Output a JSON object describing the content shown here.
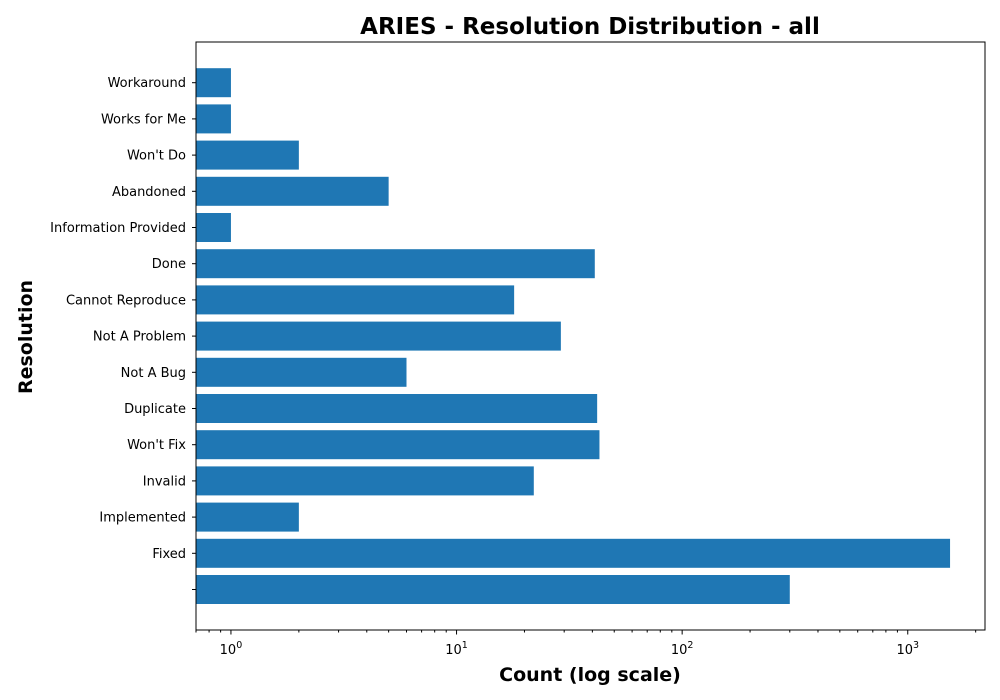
{
  "chart_data": {
    "type": "bar",
    "orientation": "horizontal",
    "title": "ARIES - Resolution Distribution - all",
    "xlabel": "Count (log scale)",
    "ylabel": "Resolution",
    "xscale": "log",
    "xlim": [
      0.7,
      2200
    ],
    "x_ticks": [
      1,
      10,
      100,
      1000
    ],
    "categories": [
      "",
      "Fixed",
      "Implemented",
      "Invalid",
      "Won't Fix",
      "Duplicate",
      "Not A Bug",
      "Not A Problem",
      "Cannot Reproduce",
      "Done",
      "Information Provided",
      "Abandoned",
      "Won't Do",
      "Works for Me",
      "Workaround"
    ],
    "values": [
      300,
      1540,
      2,
      22,
      43,
      42,
      6,
      29,
      18,
      41,
      1,
      5,
      2,
      1,
      1
    ],
    "color": "#1f77b4",
    "grid": false
  }
}
